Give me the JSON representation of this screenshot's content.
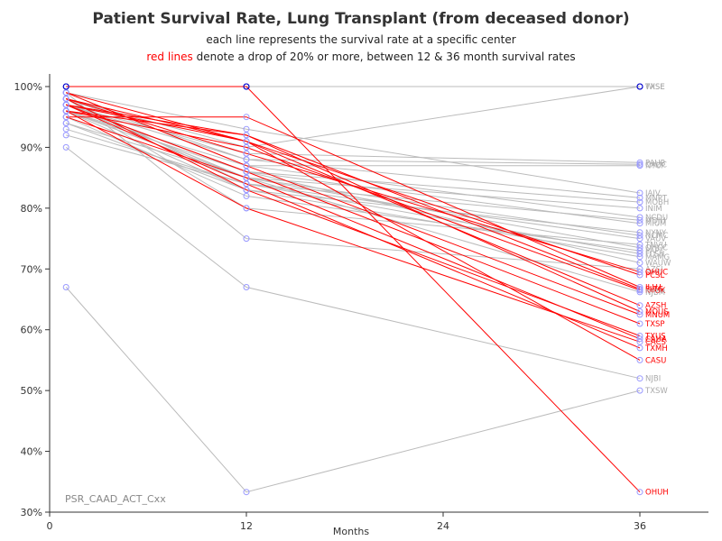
{
  "chart_data": {
    "type": "line",
    "title": "Patient Survival Rate, Lung Transplant (from deceased donor)",
    "subtitle_line1": "each line represents the survival rate at a specific center",
    "subtitle_red_part": "red lines",
    "subtitle_rest": " denote a drop of 20% or more, between 12 & 36 month survival rates",
    "xlabel": "Months",
    "x_ticks": [
      0,
      12,
      24,
      36
    ],
    "x_tick_labels": [
      "0",
      "12",
      "24",
      "36"
    ],
    "y_ticks": [
      30,
      40,
      50,
      60,
      70,
      80,
      90,
      100
    ],
    "y_tick_labels": [
      "30%",
      "40%",
      "50%",
      "60%",
      "70%",
      "80%",
      "90%",
      "100%"
    ],
    "xlim": [
      0,
      36
    ],
    "ylim": [
      30,
      100
    ],
    "x": [
      1,
      12,
      36
    ],
    "footnote": "PSR_CAAD_ACT_Cxx",
    "colors": {
      "normal": "#bbbbbb",
      "drop": "#ff0000",
      "marker": "#9999ff",
      "marker_highlight": "#0000cc"
    },
    "series": [
      {
        "name": "TXSE",
        "values": [
          100,
          100,
          100
        ],
        "drop": false
      },
      {
        "name": "WISE",
        "values": [
          98,
          90,
          100
        ],
        "drop": false
      },
      {
        "name": "PAUP",
        "values": [
          97,
          89,
          87.5
        ],
        "drop": false
      },
      {
        "name": "NYCP",
        "values": [
          96,
          87,
          87
        ],
        "drop": false
      },
      {
        "name": "CAUC",
        "values": [
          97,
          88,
          87.2
        ],
        "drop": false
      },
      {
        "name": "IAIV",
        "values": [
          99,
          93,
          82.5
        ],
        "drop": false
      },
      {
        "name": "MNPT",
        "values": [
          98,
          88,
          81.7
        ],
        "drop": false
      },
      {
        "name": "MOBH",
        "values": [
          96,
          86,
          81
        ],
        "drop": false
      },
      {
        "name": "INIM",
        "values": [
          97,
          85,
          80
        ],
        "drop": false
      },
      {
        "name": "NCDU",
        "values": [
          99,
          87,
          78.5
        ],
        "drop": false
      },
      {
        "name": "MDJH",
        "values": [
          98,
          84,
          78
        ],
        "drop": false
      },
      {
        "name": "MIUM",
        "values": [
          97,
          86,
          77.5
        ],
        "drop": false
      },
      {
        "name": "NYNY",
        "values": [
          94,
          83,
          76
        ],
        "drop": false
      },
      {
        "name": "NCMC",
        "values": [
          96,
          85,
          75.5
        ],
        "drop": false
      },
      {
        "name": "VAUV",
        "values": [
          93,
          84,
          75
        ],
        "drop": false
      },
      {
        "name": "TNVU",
        "values": [
          98,
          80,
          74
        ],
        "drop": false
      },
      {
        "name": "OHCC",
        "values": [
          97,
          85,
          73.5
        ],
        "drop": false
      },
      {
        "name": "PAPT",
        "values": [
          95,
          82,
          73
        ],
        "drop": false
      },
      {
        "name": "FLSH",
        "values": [
          92,
          84,
          72.5
        ],
        "drop": false
      },
      {
        "name": "MAMG",
        "values": [
          96,
          83,
          72
        ],
        "drop": false
      },
      {
        "name": "WAUW",
        "values": [
          97,
          86,
          71
        ],
        "drop": false
      },
      {
        "name": "AZSJ",
        "values": [
          99,
          75,
          70
        ],
        "drop": false
      },
      {
        "name": "OHUC",
        "values": [
          98,
          89,
          69.5
        ],
        "drop": true
      },
      {
        "name": "PCSL",
        "values": [
          97,
          91,
          69
        ],
        "drop": true
      },
      {
        "name": "ILLU",
        "values": [
          95,
          95,
          67
        ],
        "drop": true
      },
      {
        "name": "FLTG",
        "values": [
          97,
          92,
          66.7
        ],
        "drop": true
      },
      {
        "name": "KYUK",
        "values": [
          96,
          90,
          66.5
        ],
        "drop": true
      },
      {
        "name": "NJBM",
        "values": [
          94,
          85,
          66.2
        ],
        "drop": false
      },
      {
        "name": "AZSH",
        "values": [
          98,
          91,
          64
        ],
        "drop": true
      },
      {
        "name": "MOUS",
        "values": [
          96,
          92,
          63
        ],
        "drop": true
      },
      {
        "name": "MNUM",
        "values": [
          99,
          87,
          62.5
        ],
        "drop": true
      },
      {
        "name": "TXSP",
        "values": [
          97,
          86,
          61
        ],
        "drop": true
      },
      {
        "name": "TXUS",
        "values": [
          98,
          83,
          59
        ],
        "drop": true
      },
      {
        "name": "CAUA",
        "values": [
          95,
          85,
          58.5
        ],
        "drop": true
      },
      {
        "name": "CACS",
        "values": [
          96,
          80,
          58
        ],
        "drop": true
      },
      {
        "name": "TXMH",
        "values": [
          97,
          84,
          57
        ],
        "drop": true
      },
      {
        "name": "CASU",
        "values": [
          99,
          91,
          55
        ],
        "drop": true
      },
      {
        "name": "NJBI",
        "values": [
          90,
          67,
          52
        ],
        "drop": false
      },
      {
        "name": "TXSW",
        "values": [
          67,
          33.3,
          50
        ],
        "drop": false
      },
      {
        "name": "OHUH",
        "values": [
          100,
          100,
          33.3
        ],
        "drop": true
      }
    ]
  }
}
